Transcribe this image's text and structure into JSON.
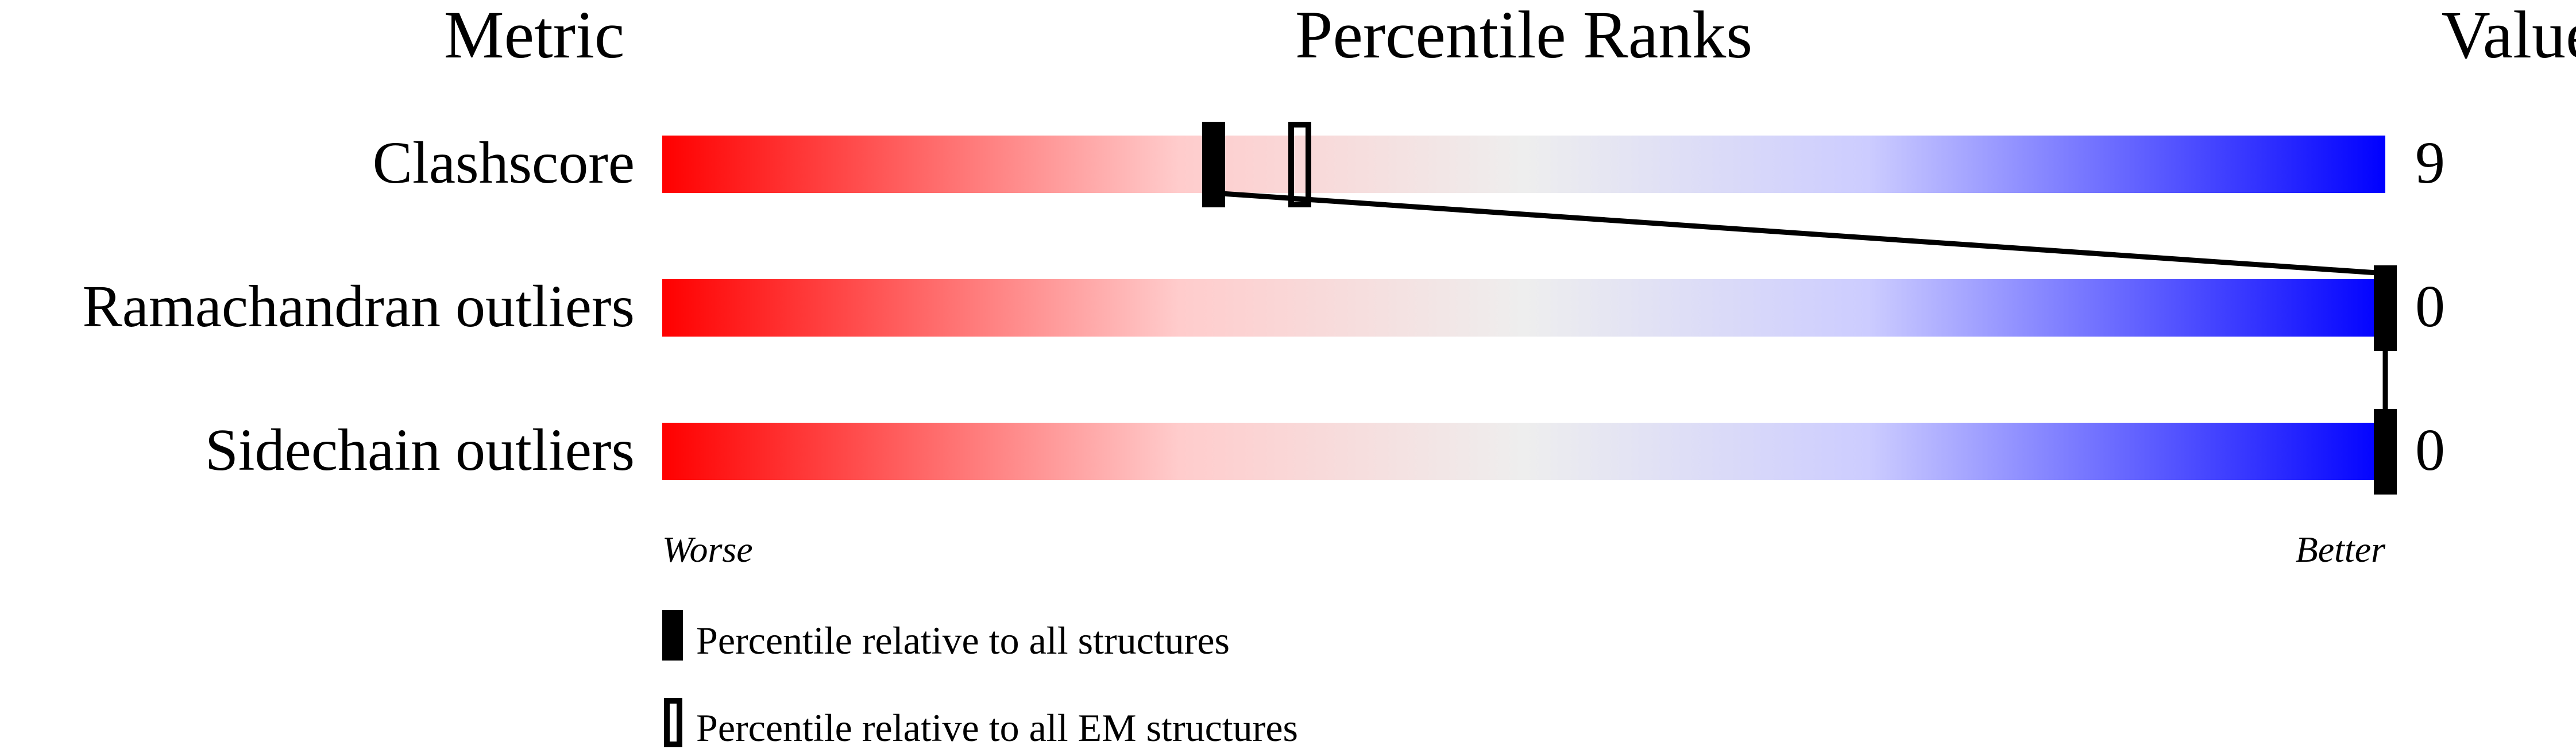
{
  "chart_data": {
    "type": "bar",
    "headers": {
      "metric": "Metric",
      "ranks": "Percentile Ranks",
      "value": "Value"
    },
    "rows": [
      {
        "metric": "Clashscore",
        "value": "9",
        "percentile_all": 32,
        "percentile_em": 37
      },
      {
        "metric": "Ramachandran outliers",
        "value": "0",
        "percentile_all": 100,
        "percentile_em": 100
      },
      {
        "metric": "Sidechain outliers",
        "value": "0",
        "percentile_all": 100,
        "percentile_em": 100
      }
    ],
    "xlim": [
      0,
      100
    ],
    "axis_labels": {
      "left": "Worse",
      "right": "Better"
    },
    "legend": {
      "all": "Percentile relative to all structures",
      "em": "Percentile relative to all EM structures"
    },
    "gradient_colors": [
      "#ff0000",
      "#ffcccc",
      "#eeeeee",
      "#ccccff",
      "#0000ff"
    ]
  }
}
